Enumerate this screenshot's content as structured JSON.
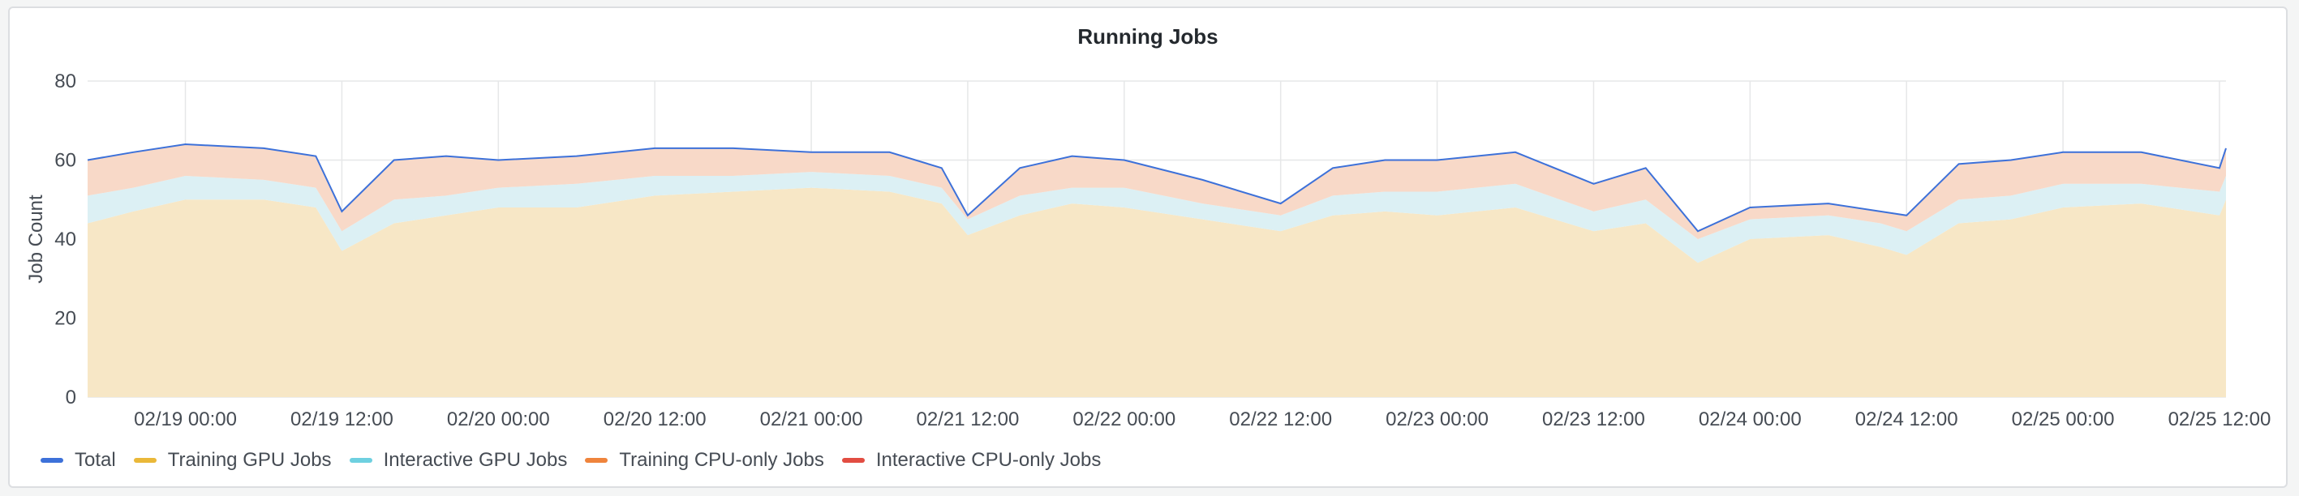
{
  "panel": {
    "title": "Running Jobs"
  },
  "chart_data": {
    "type": "area",
    "title": "Running Jobs",
    "xlabel": "",
    "ylabel": "Job Count",
    "ylim": [
      0,
      80
    ],
    "y_ticks": [
      0,
      20,
      40,
      60,
      80
    ],
    "x_ticks": [
      "02/19 00:00",
      "02/19 12:00",
      "02/20 00:00",
      "02/20 12:00",
      "02/21 00:00",
      "02/21 12:00",
      "02/22 00:00",
      "02/22 12:00",
      "02/23 00:00",
      "02/23 12:00",
      "02/24 00:00",
      "02/24 12:00",
      "02/25 00:00",
      "02/25 12:00"
    ],
    "x_start": "02/18 16:30",
    "x_end": "02/25 12:30",
    "stacked": true,
    "grid": true,
    "legend_position": "bottom-left",
    "x": [
      "02/18 16:30",
      "02/18 20:00",
      "02/19 00:00",
      "02/19 06:00",
      "02/19 10:00",
      "02/19 12:00",
      "02/19 16:00",
      "02/19 20:00",
      "02/20 00:00",
      "02/20 06:00",
      "02/20 12:00",
      "02/20 18:00",
      "02/21 00:00",
      "02/21 06:00",
      "02/21 10:00",
      "02/21 12:00",
      "02/21 16:00",
      "02/21 20:00",
      "02/22 00:00",
      "02/22 06:00",
      "02/22 12:00",
      "02/22 16:00",
      "02/22 20:00",
      "02/23 00:00",
      "02/23 06:00",
      "02/23 12:00",
      "02/23 16:00",
      "02/23 20:00",
      "02/24 00:00",
      "02/24 06:00",
      "02/24 10:00",
      "02/24 12:00",
      "02/24 16:00",
      "02/24 20:00",
      "02/25 00:00",
      "02/25 06:00",
      "02/25 12:00",
      "02/25 12:30"
    ],
    "series": [
      {
        "name": "Total",
        "color": "#3d71d9",
        "values": [
          60,
          62,
          64,
          63,
          61,
          47,
          60,
          61,
          60,
          61,
          63,
          63,
          62,
          62,
          58,
          46,
          58,
          61,
          60,
          55,
          49,
          58,
          60,
          60,
          62,
          54,
          58,
          42,
          48,
          49,
          47,
          46,
          59,
          60,
          62,
          62,
          58,
          63
        ]
      },
      {
        "name": "Training GPU Jobs",
        "color": "#eab839",
        "values": [
          44,
          47,
          50,
          50,
          48,
          37,
          44,
          46,
          48,
          48,
          51,
          52,
          53,
          52,
          49,
          41,
          46,
          49,
          48,
          45,
          42,
          46,
          47,
          46,
          48,
          42,
          44,
          34,
          40,
          41,
          38,
          36,
          44,
          45,
          48,
          49,
          46,
          50
        ]
      },
      {
        "name": "Interactive GPU Jobs",
        "color": "#6ed0e0",
        "values": [
          7,
          6,
          6,
          5,
          5,
          5,
          6,
          5,
          5,
          6,
          5,
          4,
          4,
          4,
          4,
          4,
          5,
          4,
          5,
          4,
          4,
          5,
          5,
          6,
          6,
          5,
          6,
          6,
          5,
          5,
          6,
          6,
          6,
          6,
          6,
          5,
          6,
          6
        ]
      },
      {
        "name": "Training CPU-only Jobs",
        "color": "#ef843c",
        "values": [
          9,
          9,
          8,
          8,
          8,
          5,
          10,
          10,
          7,
          7,
          7,
          7,
          5,
          6,
          5,
          1,
          7,
          8,
          7,
          6,
          3,
          7,
          8,
          8,
          8,
          7,
          8,
          2,
          3,
          3,
          3,
          4,
          9,
          9,
          8,
          8,
          6,
          7
        ]
      },
      {
        "name": "Interactive CPU-only Jobs",
        "color": "#e24d42",
        "values": [
          0,
          0,
          0,
          0,
          0,
          0,
          0,
          0,
          0,
          0,
          0,
          0,
          0,
          0,
          0,
          0,
          0,
          0,
          0,
          0,
          0,
          0,
          0,
          0,
          0,
          0,
          0,
          0,
          0,
          0,
          0,
          0,
          0,
          0,
          0,
          0,
          0,
          0
        ]
      }
    ]
  }
}
